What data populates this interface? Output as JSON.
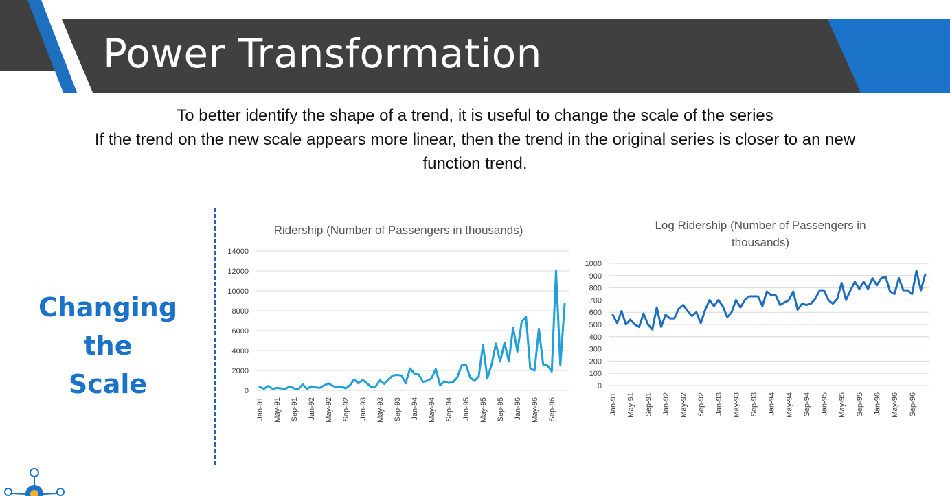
{
  "slide": {
    "title": "Power Transformation",
    "subtitle_lines": [
      "To better identify the shape of a trend, it is useful to change the scale of the series",
      "If the trend on the new scale appears more linear, then the trend in the original series is closer to an new",
      "function trend."
    ],
    "side_heading_lines": [
      "Changing the",
      "Scale"
    ],
    "colors": {
      "banner_dark": "#404040",
      "accent_blue": "#1a73c8",
      "light_blue_series": "#1fa0d8",
      "dark_blue_series": "#1f6fbf"
    }
  },
  "chart_data": [
    {
      "type": "line",
      "title_lines": [
        "Ridership (Number of Passengers in thousands)"
      ],
      "ylim": [
        0,
        14000
      ],
      "yticks": [
        0,
        2000,
        4000,
        6000,
        8000,
        10000,
        12000,
        14000
      ],
      "xtick_labels": [
        "Jan-91",
        "May-91",
        "Sep-91",
        "Jan-92",
        "May-92",
        "Sep-92",
        "Jan-93",
        "May-93",
        "Sep-93",
        "Jan-94",
        "May-94",
        "Sep-94",
        "Jan-95",
        "May-95",
        "Sep-95",
        "Jan-96",
        "May-96",
        "Sep-96"
      ],
      "series": [
        {
          "color": "#1fa0d8",
          "values": [
            350,
            150,
            450,
            150,
            250,
            200,
            150,
            400,
            200,
            100,
            600,
            150,
            400,
            300,
            250,
            500,
            700,
            450,
            300,
            400,
            200,
            500,
            1100,
            700,
            1050,
            700,
            300,
            400,
            1000,
            650,
            1100,
            1500,
            1550,
            1500,
            700,
            2200,
            1700,
            1600,
            850,
            950,
            1200,
            2150,
            500,
            900,
            750,
            800,
            1300,
            2500,
            2600,
            1300,
            950,
            1400,
            4600,
            1200,
            2600,
            4700,
            2900,
            4800,
            2900,
            6300,
            3900,
            6900,
            7400,
            2200,
            2000,
            6200,
            2600,
            2500,
            1900,
            12000,
            2500,
            8700
          ]
        }
      ]
    },
    {
      "type": "line",
      "title_lines": [
        "Log Ridership (Number of Passengers in",
        "thousands)"
      ],
      "ylim": [
        0,
        1000
      ],
      "yticks": [
        0,
        100,
        200,
        300,
        400,
        500,
        600,
        700,
        800,
        900,
        1000
      ],
      "xtick_labels": [
        "Jan-91",
        "May-91",
        "Sep-91",
        "Jan-92",
        "May-92",
        "Sep-92",
        "Jan-93",
        "May-93",
        "Sep-93",
        "Jan-94",
        "May-94",
        "Sep-94",
        "Jan-95",
        "May-95",
        "Sep-95",
        "Jan-96",
        "May-96",
        "Sep-96"
      ],
      "series": [
        {
          "color": "#1f6fbf",
          "values": [
            580,
            510,
            610,
            500,
            540,
            500,
            480,
            590,
            500,
            460,
            640,
            480,
            580,
            550,
            550,
            630,
            660,
            610,
            570,
            600,
            510,
            620,
            700,
            650,
            700,
            650,
            560,
            600,
            700,
            640,
            700,
            730,
            730,
            730,
            650,
            770,
            740,
            740,
            660,
            680,
            700,
            770,
            620,
            670,
            660,
            670,
            710,
            780,
            780,
            700,
            670,
            710,
            840,
            700,
            780,
            850,
            790,
            850,
            790,
            880,
            820,
            880,
            890,
            770,
            750,
            880,
            780,
            780,
            750,
            940,
            780,
            910
          ]
        }
      ]
    }
  ]
}
